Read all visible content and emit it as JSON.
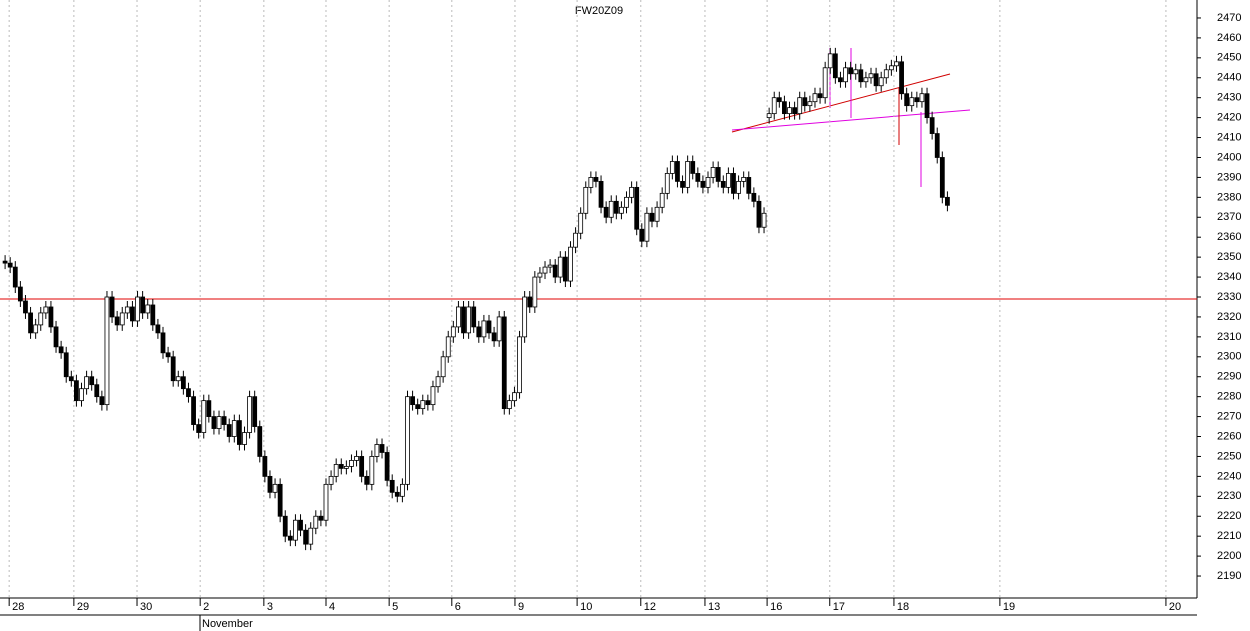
{
  "chart_data": {
    "type": "candlestick",
    "title": "FW20Z09",
    "x_group_label": "November",
    "xlim": [
      0,
      235
    ],
    "ylim": [
      2185,
      2475
    ],
    "xticks": [
      {
        "value": 1.8,
        "label": "28"
      },
      {
        "value": 14.5,
        "label": "29"
      },
      {
        "value": 26.9,
        "label": "30"
      },
      {
        "value": 39.3,
        "label": "2"
      },
      {
        "value": 51.8,
        "label": "3"
      },
      {
        "value": 64,
        "label": "4"
      },
      {
        "value": 76.4,
        "label": "5"
      },
      {
        "value": 88.7,
        "label": "6"
      },
      {
        "value": 101.1,
        "label": "9"
      },
      {
        "value": 113.3,
        "label": "10"
      },
      {
        "value": 125.8,
        "label": "12"
      },
      {
        "value": 138.4,
        "label": "13"
      },
      {
        "value": 150.6,
        "label": "16"
      },
      {
        "value": 162.9,
        "label": "17"
      },
      {
        "value": 175.5,
        "label": "18"
      },
      {
        "value": 196.3,
        "label": "19"
      },
      {
        "value": 228.9,
        "label": "20"
      }
    ],
    "yticks": [
      2190,
      2200,
      2210,
      2220,
      2230,
      2240,
      2250,
      2260,
      2270,
      2280,
      2290,
      2300,
      2310,
      2320,
      2330,
      2340,
      2350,
      2360,
      2370,
      2380,
      2390,
      2400,
      2410,
      2420,
      2430,
      2440,
      2450,
      2460,
      2470
    ],
    "grid": true,
    "reference_line": 2329,
    "reference_color": "#e00000",
    "up_color": "#ffffff",
    "down_color": "#000000",
    "open": [
      2348,
      2347,
      2345,
      2335,
      2328,
      2322,
      2312,
      2316,
      2322,
      2325,
      2315,
      2305,
      2302,
      2290,
      2288,
      2278,
      2284,
      2290,
      2286,
      2280,
      2276,
      2330,
      2320,
      2316,
      2322,
      2325,
      2318,
      2330,
      2322,
      2326,
      2316,
      2312,
      2302,
      2300,
      2288,
      2290,
      2284,
      2280,
      2266,
      2262,
      2278,
      2270,
      2264,
      2270,
      2266,
      2260,
      2268,
      2256,
      2262,
      2280,
      2265,
      2250,
      2240,
      2232,
      2236,
      2220,
      2210,
      2208,
      2218,
      2213,
      2206,
      2214,
      2220,
      2218,
      2236,
      2240,
      2246,
      2244,
      2245,
      2248,
      2250,
      2240,
      2236,
      2250,
      2256,
      2252,
      2238,
      2232,
      2230,
      2236,
      2280,
      2276,
      2274,
      2278,
      2276,
      2285,
      2290,
      2300,
      2310,
      2315,
      2325,
      2312,
      2325,
      2315,
      2310,
      2318,
      2312,
      2308,
      2320,
      2274,
      2278,
      2282,
      2310,
      2330,
      2325,
      2340,
      2342,
      2345,
      2346,
      2340,
      2350,
      2338,
      2355,
      2362,
      2372,
      2385,
      2390,
      2388,
      2375,
      2370,
      2378,
      2372,
      2375,
      2380,
      2385,
      2364,
      2358,
      2372,
      2368,
      2375,
      2382,
      2392,
      2398,
      2388,
      2385,
      2398,
      2392,
      2388,
      2385,
      2390,
      2395,
      2388,
      2385,
      2392,
      2382,
      2388,
      2390,
      2382,
      2378,
      2365,
      2420,
      2422,
      2430,
      2428,
      2422,
      2425,
      2422,
      2430,
      2426,
      2428,
      2432,
      2430,
      2445,
      2452,
      2440,
      2438,
      2445,
      2442,
      2444,
      2438,
      2440,
      2442,
      2436,
      2440,
      2444,
      2446,
      2448,
      2432,
      2426,
      2430,
      2428,
      2432,
      2420,
      2412,
      2400,
      2380
    ],
    "high": [
      2351,
      2350,
      2348,
      2338,
      2331,
      2325,
      2319,
      2325,
      2328,
      2328,
      2318,
      2308,
      2305,
      2293,
      2291,
      2287,
      2293,
      2293,
      2289,
      2283,
      2333,
      2333,
      2323,
      2325,
      2328,
      2328,
      2333,
      2333,
      2329,
      2329,
      2319,
      2315,
      2305,
      2303,
      2293,
      2293,
      2287,
      2283,
      2269,
      2281,
      2281,
      2273,
      2273,
      2273,
      2269,
      2271,
      2271,
      2265,
      2283,
      2283,
      2268,
      2253,
      2243,
      2239,
      2239,
      2223,
      2213,
      2221,
      2221,
      2216,
      2217,
      2223,
      2223,
      2239,
      2243,
      2249,
      2249,
      2248,
      2251,
      2253,
      2253,
      2243,
      2253,
      2259,
      2259,
      2255,
      2241,
      2235,
      2239,
      2283,
      2283,
      2279,
      2281,
      2281,
      2288,
      2293,
      2303,
      2313,
      2318,
      2328,
      2328,
      2328,
      2328,
      2318,
      2321,
      2321,
      2315,
      2323,
      2323,
      2281,
      2285,
      2313,
      2333,
      2333,
      2343,
      2345,
      2348,
      2349,
      2349,
      2353,
      2353,
      2358,
      2365,
      2375,
      2388,
      2393,
      2393,
      2391,
      2378,
      2381,
      2381,
      2378,
      2383,
      2388,
      2388,
      2367,
      2375,
      2375,
      2378,
      2385,
      2395,
      2401,
      2401,
      2391,
      2401,
      2401,
      2395,
      2391,
      2393,
      2398,
      2398,
      2391,
      2395,
      2395,
      2391,
      2393,
      2393,
      2385,
      2381,
      2375,
      2425,
      2433,
      2433,
      2431,
      2428,
      2428,
      2433,
      2433,
      2431,
      2435,
      2435,
      2448,
      2455,
      2455,
      2443,
      2448,
      2448,
      2447,
      2447,
      2443,
      2445,
      2445,
      2443,
      2447,
      2449,
      2451,
      2451,
      2435,
      2433,
      2433,
      2435,
      2435,
      2423,
      2415,
      2403,
      2383
    ],
    "low": [
      2344,
      2342,
      2332,
      2325,
      2319,
      2309,
      2309,
      2313,
      2319,
      2312,
      2302,
      2299,
      2287,
      2285,
      2275,
      2275,
      2281,
      2283,
      2277,
      2273,
      2273,
      2317,
      2313,
      2313,
      2319,
      2315,
      2315,
      2319,
      2319,
      2313,
      2309,
      2299,
      2297,
      2285,
      2285,
      2281,
      2277,
      2263,
      2259,
      2259,
      2267,
      2261,
      2261,
      2263,
      2257,
      2257,
      2253,
      2253,
      2259,
      2262,
      2247,
      2237,
      2229,
      2229,
      2217,
      2207,
      2205,
      2205,
      2210,
      2203,
      2203,
      2211,
      2215,
      2215,
      2233,
      2237,
      2241,
      2241,
      2242,
      2245,
      2237,
      2233,
      2233,
      2247,
      2249,
      2235,
      2229,
      2227,
      2227,
      2233,
      2273,
      2271,
      2271,
      2273,
      2273,
      2282,
      2287,
      2297,
      2307,
      2312,
      2309,
      2309,
      2312,
      2307,
      2307,
      2309,
      2305,
      2305,
      2271,
      2271,
      2275,
      2279,
      2307,
      2322,
      2322,
      2337,
      2339,
      2342,
      2337,
      2337,
      2335,
      2335,
      2352,
      2359,
      2369,
      2382,
      2385,
      2372,
      2367,
      2367,
      2369,
      2369,
      2372,
      2377,
      2361,
      2355,
      2355,
      2365,
      2365,
      2372,
      2379,
      2389,
      2385,
      2382,
      2382,
      2389,
      2385,
      2382,
      2382,
      2387,
      2385,
      2382,
      2382,
      2379,
      2379,
      2385,
      2379,
      2375,
      2362,
      2362,
      2417,
      2419,
      2425,
      2419,
      2419,
      2419,
      2419,
      2423,
      2423,
      2425,
      2427,
      2427,
      2442,
      2437,
      2435,
      2435,
      2439,
      2439,
      2435,
      2435,
      2437,
      2433,
      2433,
      2437,
      2441,
      2443,
      2429,
      2423,
      2423,
      2425,
      2425,
      2417,
      2409,
      2397,
      2377,
      2373
    ],
    "close": [
      2347,
      2345,
      2335,
      2328,
      2322,
      2312,
      2316,
      2322,
      2325,
      2315,
      2305,
      2302,
      2290,
      2288,
      2278,
      2284,
      2290,
      2286,
      2280,
      2276,
      2330,
      2320,
      2316,
      2322,
      2325,
      2318,
      2330,
      2322,
      2326,
      2316,
      2312,
      2302,
      2300,
      2288,
      2290,
      2284,
      2280,
      2266,
      2262,
      2278,
      2270,
      2264,
      2270,
      2266,
      2260,
      2268,
      2256,
      2262,
      2280,
      2265,
      2250,
      2240,
      2232,
      2236,
      2220,
      2210,
      2208,
      2218,
      2213,
      2206,
      2214,
      2220,
      2218,
      2236,
      2240,
      2246,
      2244,
      2245,
      2248,
      2250,
      2240,
      2236,
      2250,
      2256,
      2252,
      2238,
      2232,
      2230,
      2236,
      2280,
      2276,
      2274,
      2278,
      2276,
      2285,
      2290,
      2300,
      2310,
      2315,
      2325,
      2312,
      2325,
      2315,
      2310,
      2318,
      2312,
      2308,
      2320,
      2274,
      2278,
      2282,
      2310,
      2330,
      2325,
      2340,
      2342,
      2345,
      2346,
      2340,
      2350,
      2338,
      2355,
      2362,
      2372,
      2385,
      2390,
      2388,
      2375,
      2370,
      2378,
      2372,
      2375,
      2380,
      2385,
      2364,
      2358,
      2372,
      2368,
      2375,
      2382,
      2392,
      2398,
      2388,
      2385,
      2398,
      2392,
      2388,
      2385,
      2390,
      2395,
      2388,
      2385,
      2392,
      2382,
      2388,
      2390,
      2382,
      2378,
      2365,
      2372,
      2422,
      2430,
      2428,
      2422,
      2425,
      2422,
      2430,
      2426,
      2428,
      2432,
      2430,
      2445,
      2452,
      2440,
      2438,
      2445,
      2442,
      2444,
      2438,
      2440,
      2442,
      2436,
      2440,
      2444,
      2446,
      2448,
      2432,
      2426,
      2430,
      2428,
      2432,
      2420,
      2412,
      2400,
      2380,
      2376
    ]
  }
}
